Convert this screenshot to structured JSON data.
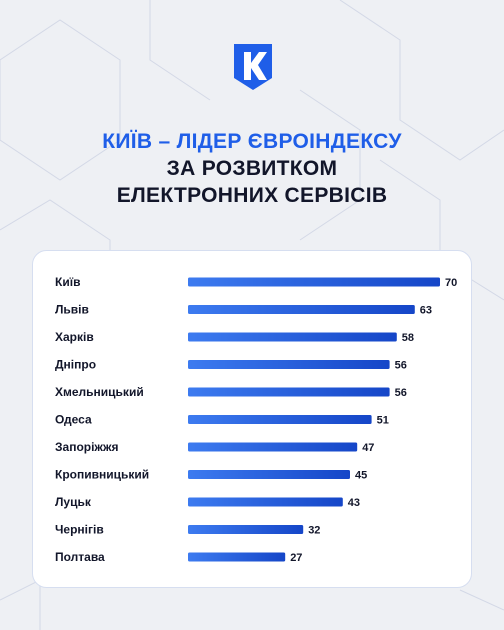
{
  "chart_data": {
    "type": "bar",
    "orientation": "horizontal",
    "title": "КИЇВ – ЛІДЕР ЄВРОІНДЕКСУ",
    "subtitle": "ЗА РОЗВИТКОМ ЕЛЕКТРОННИХ СЕРВІСІВ",
    "categories": [
      "Київ",
      "Львів",
      "Харків",
      "Дніпро",
      "Хмельницький",
      "Одеса",
      "Запоріжжя",
      "Кропивницький",
      "Луцьк",
      "Чернігів",
      "Полтава"
    ],
    "values": [
      70,
      63,
      58,
      56,
      56,
      51,
      47,
      45,
      43,
      32,
      27
    ],
    "color": "#1546c8"
  }
}
